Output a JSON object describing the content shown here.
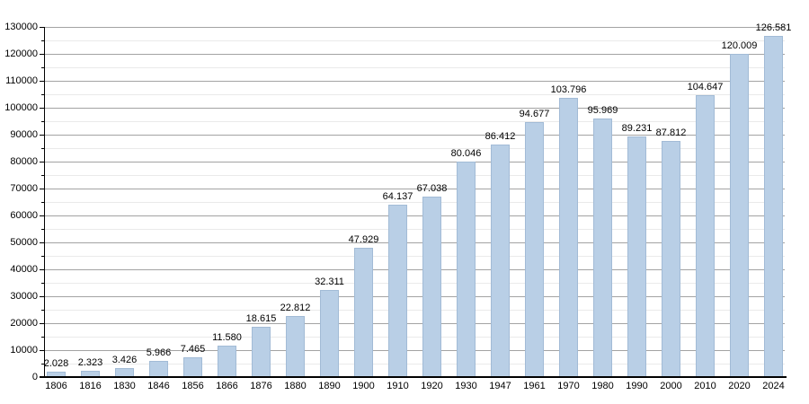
{
  "chart_data": {
    "type": "bar",
    "title": "",
    "xlabel": "",
    "ylabel": "",
    "categories": [
      "1806",
      "1816",
      "1830",
      "1846",
      "1856",
      "1866",
      "1876",
      "1880",
      "1890",
      "1900",
      "1910",
      "1920",
      "1930",
      "1947",
      "1961",
      "1970",
      "1980",
      "1990",
      "2000",
      "2010",
      "2020",
      "2024"
    ],
    "values": [
      2028,
      2323,
      3426,
      5966,
      7465,
      11580,
      18615,
      22812,
      32311,
      47929,
      64137,
      67038,
      80046,
      86412,
      94677,
      103796,
      95969,
      89231,
      87812,
      104647,
      120009,
      126581
    ],
    "value_labels": [
      "2.028",
      "2.323",
      "3.426",
      "5.966",
      "7.465",
      "11.580",
      "18.615",
      "22.812",
      "32.311",
      "47.929",
      "64.137",
      "67.038",
      "80.046",
      "86.412",
      "94.677",
      "103.796",
      "95.969",
      "89.231",
      "87.812",
      "104.647",
      "120.009",
      "126.581"
    ],
    "ylim": [
      0,
      130000
    ],
    "y_major_step": 10000,
    "y_minor_step": 5000,
    "y_tick_labels": [
      "0",
      "10000",
      "20000",
      "30000",
      "40000",
      "50000",
      "60000",
      "70000",
      "80000",
      "90000",
      "100000",
      "110000",
      "120000",
      "130000"
    ],
    "grid": "horizontal major and minor",
    "legend_position": "none",
    "colors": {
      "bar_fill": "#b9cfe6",
      "bar_border": "#a2bbd6",
      "grid_major": "#a3a3a3",
      "grid_minor": "#eaeaea",
      "axis": "#000000",
      "text": "#000000",
      "background": "#ffffff"
    }
  }
}
